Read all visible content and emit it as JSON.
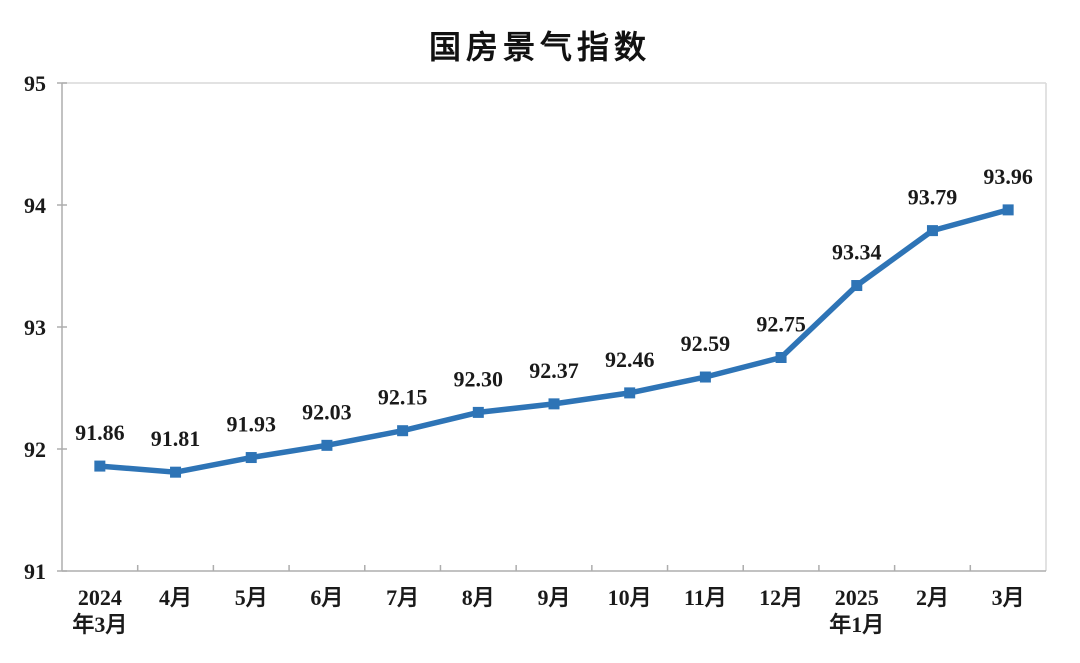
{
  "chart_data": {
    "type": "line",
    "title": "国房景气指数",
    "categories": [
      "2024年3月",
      "4月",
      "5月",
      "6月",
      "7月",
      "8月",
      "9月",
      "10月",
      "11月",
      "12月",
      "2025年1月",
      "2月",
      "3月"
    ],
    "category_lines": [
      [
        "2024",
        "年3月"
      ],
      [
        "4月"
      ],
      [
        "5月"
      ],
      [
        "6月"
      ],
      [
        "7月"
      ],
      [
        "8月"
      ],
      [
        "9月"
      ],
      [
        "10月"
      ],
      [
        "11月"
      ],
      [
        "12月"
      ],
      [
        "2025",
        "年1月"
      ],
      [
        "2月"
      ],
      [
        "3月"
      ]
    ],
    "series": [
      {
        "name": "国房景气指数",
        "values": [
          91.86,
          91.81,
          91.93,
          92.03,
          92.15,
          92.3,
          92.37,
          92.46,
          92.59,
          92.75,
          93.34,
          93.79,
          93.96
        ]
      }
    ],
    "data_labels": [
      "91.86",
      "91.81",
      "91.93",
      "92.03",
      "92.15",
      "92.30",
      "92.37",
      "92.46",
      "92.59",
      "92.75",
      "93.34",
      "93.79",
      "93.96"
    ],
    "xlabel": "",
    "ylabel": "",
    "ylim": [
      91,
      95
    ],
    "yticks": [
      91,
      92,
      93,
      94,
      95
    ],
    "grid": false,
    "legend": "none",
    "marker": "square",
    "colors": {
      "line": "#2E74B6",
      "marker": "#2E74B6",
      "axis": "#ADADAD",
      "plot_border": "#D9D9D9",
      "text": "#1a1a1a",
      "title": "#111111",
      "background": "#ffffff"
    }
  }
}
